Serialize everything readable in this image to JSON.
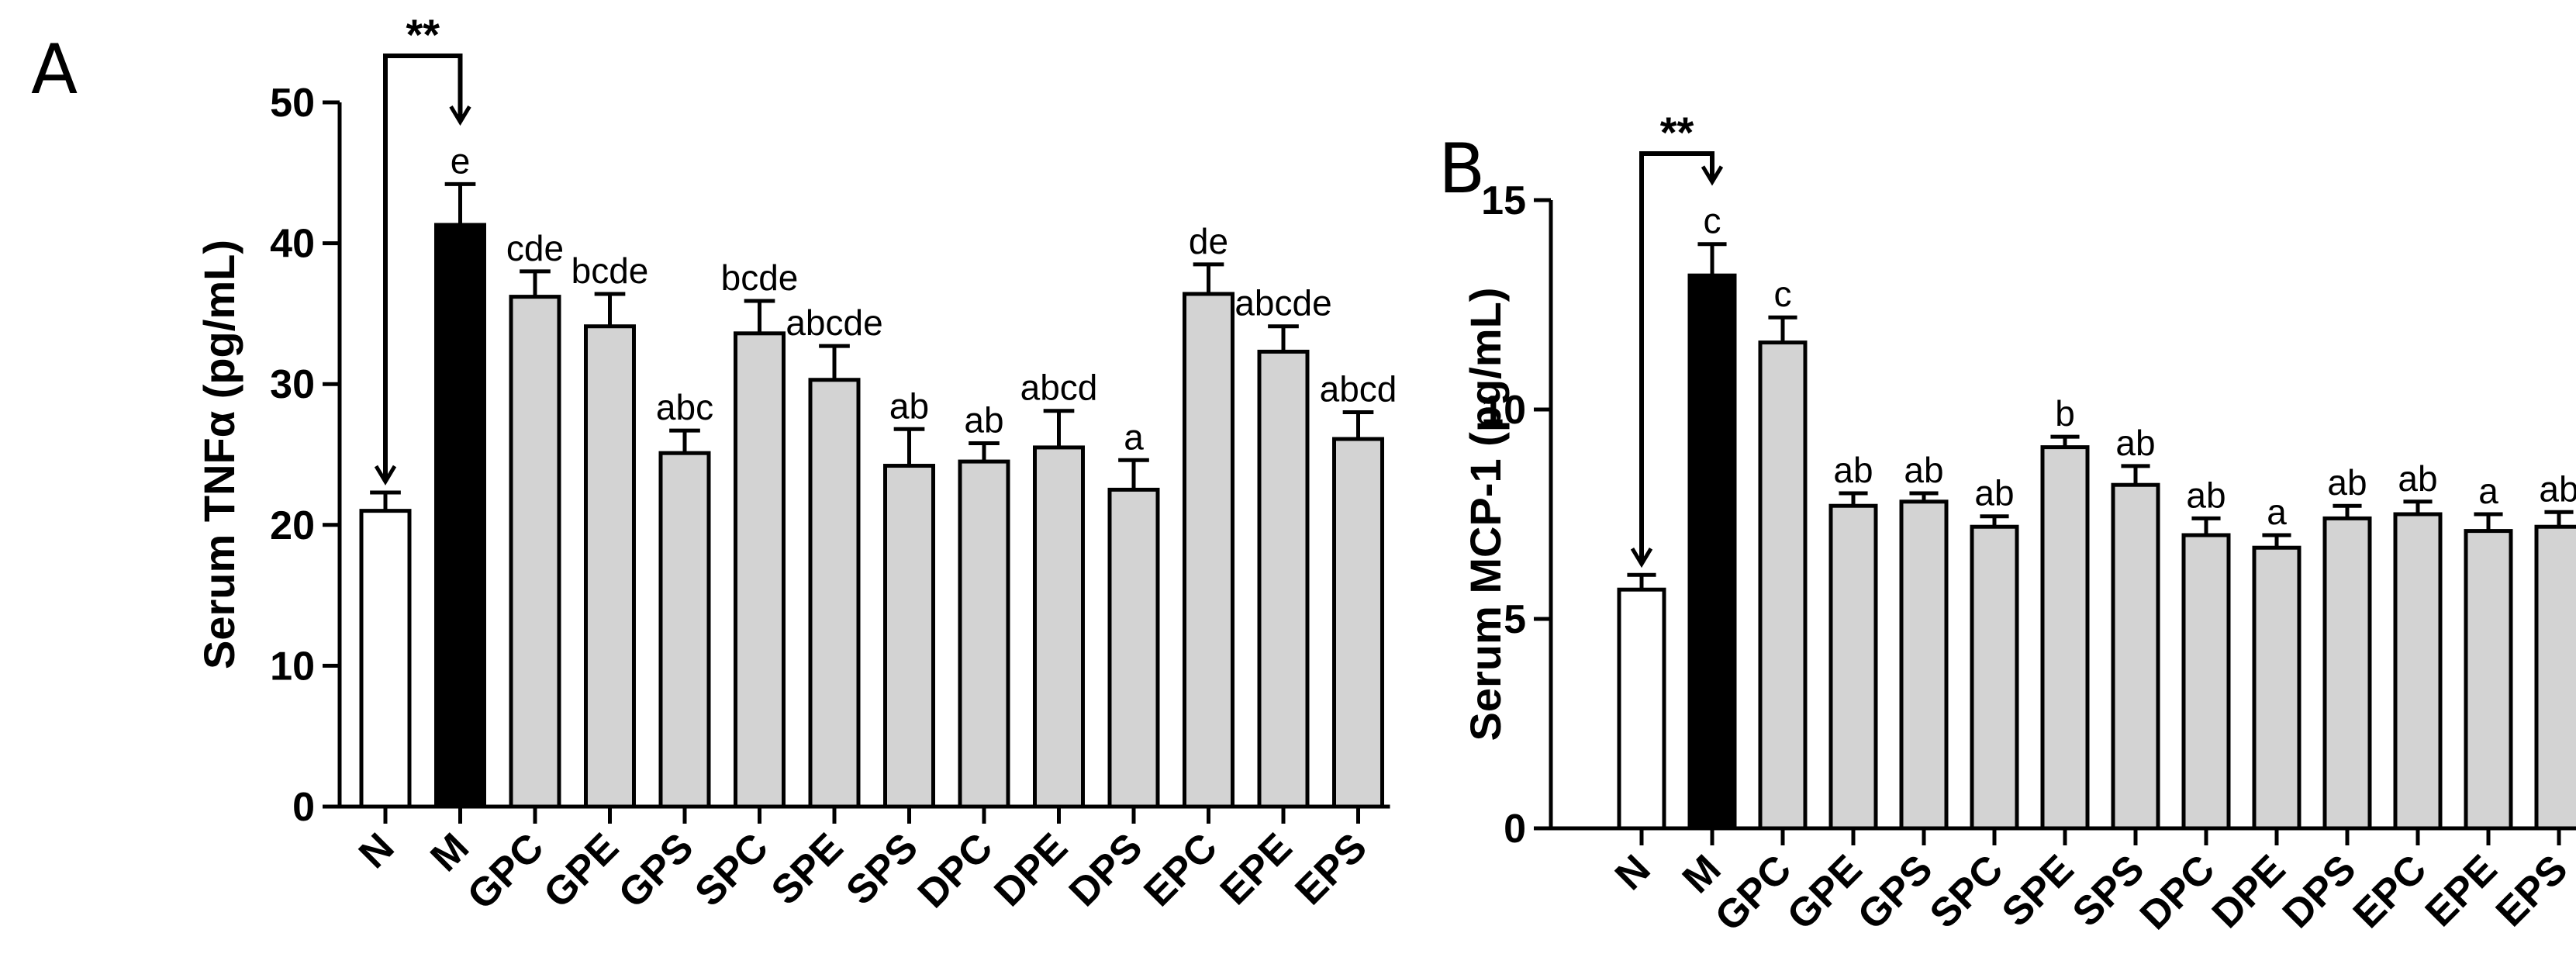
{
  "chart_data": [
    {
      "type": "bar",
      "panel": "A",
      "ylabel": "Serum TNFα (pg/mL)",
      "ylim": [
        0,
        50
      ],
      "yticks": [
        0,
        10,
        20,
        30,
        40,
        50
      ],
      "categories": [
        "N",
        "M",
        "GPC",
        "GPE",
        "GPS",
        "SPC",
        "SPE",
        "SPS",
        "DPC",
        "DPE",
        "DPS",
        "EPC",
        "EPE",
        "EPS"
      ],
      "values": [
        21.0,
        41.3,
        36.2,
        34.1,
        25.1,
        33.6,
        30.3,
        24.2,
        24.5,
        25.5,
        22.5,
        36.4,
        32.3,
        26.1
      ],
      "errors": [
        1.3,
        2.9,
        1.8,
        2.3,
        1.6,
        2.3,
        2.4,
        2.6,
        1.3,
        2.6,
        2.1,
        2.1,
        1.8,
        1.9
      ],
      "fills": [
        "#ffffff",
        "#000000",
        "#d3d3d3",
        "#d3d3d3",
        "#d3d3d3",
        "#d3d3d3",
        "#d3d3d3",
        "#d3d3d3",
        "#d3d3d3",
        "#d3d3d3",
        "#d3d3d3",
        "#d3d3d3",
        "#d3d3d3",
        "#d3d3d3"
      ],
      "labels": [
        "",
        "e",
        "cde",
        "bcde",
        "abc",
        "bcde",
        "abcde",
        "ab",
        "ab",
        "abcd",
        "a",
        "de",
        "abcde",
        "abcd"
      ],
      "significance": {
        "from": "N",
        "to": "M",
        "text": "**"
      }
    },
    {
      "type": "bar",
      "panel": "B",
      "ylabel": "Serum MCP-1 (pg/mL)",
      "ylim": [
        0,
        15
      ],
      "yticks": [
        0,
        5,
        10,
        15
      ],
      "categories": [
        "N",
        "M",
        "GPC",
        "GPE",
        "GPS",
        "SPC",
        "SPE",
        "SPS",
        "DPC",
        "DPE",
        "DPS",
        "EPC",
        "EPE",
        "EPS"
      ],
      "values": [
        5.7,
        13.2,
        11.6,
        7.7,
        7.8,
        7.2,
        9.1,
        8.2,
        7.0,
        6.7,
        7.4,
        7.5,
        7.1,
        7.2
      ],
      "errors": [
        0.35,
        0.75,
        0.6,
        0.3,
        0.2,
        0.25,
        0.25,
        0.45,
        0.4,
        0.3,
        0.3,
        0.3,
        0.4,
        0.35
      ],
      "fills": [
        "#ffffff",
        "#000000",
        "#d3d3d3",
        "#d3d3d3",
        "#d3d3d3",
        "#d3d3d3",
        "#d3d3d3",
        "#d3d3d3",
        "#d3d3d3",
        "#d3d3d3",
        "#d3d3d3",
        "#d3d3d3",
        "#d3d3d3",
        "#d3d3d3"
      ],
      "labels": [
        "",
        "c",
        "c",
        "ab",
        "ab",
        "ab",
        "b",
        "ab",
        "ab",
        "a",
        "ab",
        "ab",
        "a",
        "ab"
      ],
      "significance": {
        "from": "N",
        "to": "M",
        "text": "**"
      }
    }
  ]
}
